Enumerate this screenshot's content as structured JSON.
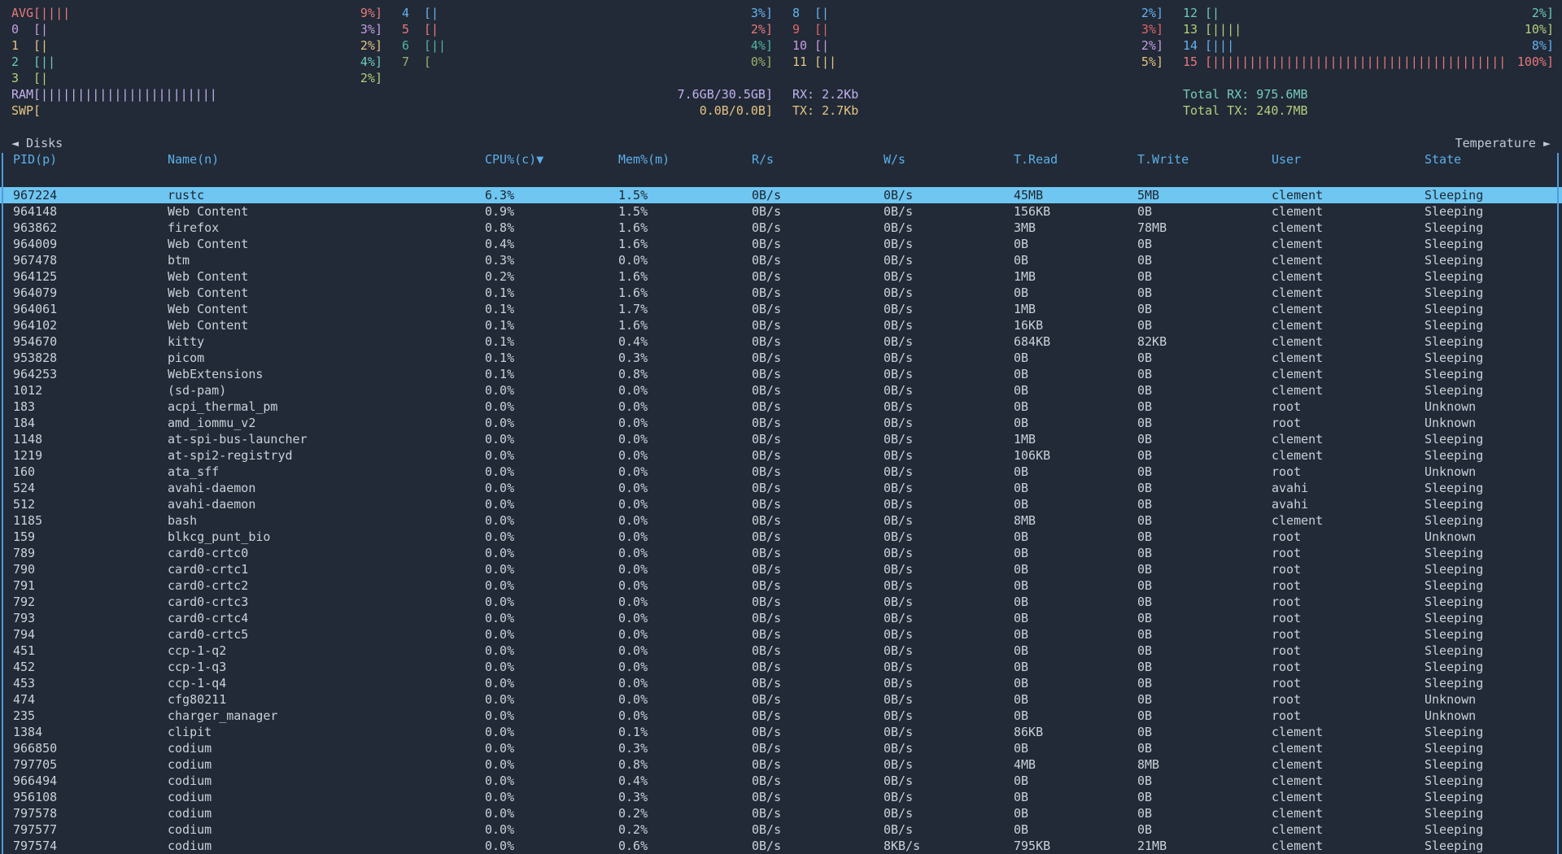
{
  "colors": {
    "background": "#212a36",
    "text": "#cbd1da",
    "header_blue": "#5eaee8",
    "border_blue": "#4c9be0",
    "selected_bg": "#6ec6f1",
    "selected_text": "#1d2531",
    "palette": {
      "lightred": "#e8797d",
      "red": "#e06568",
      "lightmagenta": "#c99ce4",
      "lightyellow": "#e5c384",
      "lightcyan": "#6ec9bd",
      "lightgreen": "#b4ce7e",
      "lightblue": "#67b1f0",
      "cyan": "#52b3a4",
      "green": "#9cb167",
      "purple": "#c3b1ee",
      "teal_total": "#76cabb"
    }
  },
  "cpu": {
    "columns": [
      [
        {
          "label": "AVG",
          "pipes": 4,
          "value": "9%",
          "color": "lightred"
        },
        {
          "label": "0",
          "pipes": 1,
          "value": "3%",
          "color": "lightmagenta"
        },
        {
          "label": "1",
          "pipes": 1,
          "value": "2%",
          "color": "lightyellow"
        },
        {
          "label": "2",
          "pipes": 2,
          "value": "4%",
          "color": "lightcyan"
        },
        {
          "label": "3",
          "pipes": 1,
          "value": "2%",
          "color": "lightgreen"
        }
      ],
      [
        {
          "label": "4",
          "pipes": 1,
          "value": "3%",
          "color": "lightblue"
        },
        {
          "label": "5",
          "pipes": 1,
          "value": "2%",
          "color": "lightred"
        },
        {
          "label": "6",
          "pipes": 2,
          "value": "4%",
          "color": "cyan"
        },
        {
          "label": "7",
          "pipes": 0,
          "value": "0%",
          "color": "green"
        }
      ],
      [
        {
          "label": "8",
          "pipes": 1,
          "value": "2%",
          "color": "lightblue"
        },
        {
          "label": "9",
          "pipes": 1,
          "value": "3%",
          "color": "red"
        },
        {
          "label": "10",
          "pipes": 1,
          "value": "2%",
          "color": "lightmagenta"
        },
        {
          "label": "11",
          "pipes": 2,
          "value": "5%",
          "color": "lightyellow"
        }
      ],
      [
        {
          "label": "12",
          "pipes": 1,
          "value": "2%",
          "color": "lightcyan"
        },
        {
          "label": "13",
          "pipes": 4,
          "value": "10%",
          "color": "lightgreen"
        },
        {
          "label": "14",
          "pipes": 3,
          "value": "8%",
          "color": "lightblue"
        },
        {
          "label": "15",
          "pipes": 40,
          "value": "100%",
          "color": "lightred"
        }
      ]
    ]
  },
  "memory": {
    "ram": {
      "label": "RAM",
      "pipes": 24,
      "value": "7.6GB/30.5GB",
      "color": "purple"
    },
    "swp": {
      "label": "SWP",
      "pipes": 0,
      "value": "0.0B/0.0B",
      "color": "lightyellow"
    }
  },
  "network": {
    "rx": "RX: 2.2Kb",
    "tx": "TX: 2.7Kb",
    "total_rx": "Total RX: 975.6MB",
    "total_tx": "Total TX: 240.7MB",
    "rx_color": "purple",
    "tx_color": "lightyellow",
    "total_rx_color": "teal_total",
    "total_tx_color": "lightgreen"
  },
  "nav": {
    "left_label": "◄ Disks",
    "right_label": "Temperature ►"
  },
  "process_table": {
    "headers": [
      "PID(p)",
      "Name(n)",
      "CPU%(c)▼",
      "Mem%(m)",
      "R/s",
      "W/s",
      "T.Read",
      "T.Write",
      "User",
      "State"
    ],
    "sort_column": "CPU%(c)",
    "sort_indicator": "▼",
    "selected_index": 0,
    "rows": [
      [
        "967224",
        "rustc",
        "6.3%",
        "1.5%",
        "0B/s",
        "0B/s",
        "45MB",
        "5MB",
        "clement",
        "Sleeping"
      ],
      [
        "964148",
        "Web Content",
        "0.9%",
        "1.5%",
        "0B/s",
        "0B/s",
        "156KB",
        "0B",
        "clement",
        "Sleeping"
      ],
      [
        "963862",
        "firefox",
        "0.8%",
        "1.6%",
        "0B/s",
        "0B/s",
        "3MB",
        "78MB",
        "clement",
        "Sleeping"
      ],
      [
        "964009",
        "Web Content",
        "0.4%",
        "1.6%",
        "0B/s",
        "0B/s",
        "0B",
        "0B",
        "clement",
        "Sleeping"
      ],
      [
        "967478",
        "btm",
        "0.3%",
        "0.0%",
        "0B/s",
        "0B/s",
        "0B",
        "0B",
        "clement",
        "Sleeping"
      ],
      [
        "964125",
        "Web Content",
        "0.2%",
        "1.6%",
        "0B/s",
        "0B/s",
        "1MB",
        "0B",
        "clement",
        "Sleeping"
      ],
      [
        "964079",
        "Web Content",
        "0.1%",
        "1.6%",
        "0B/s",
        "0B/s",
        "0B",
        "0B",
        "clement",
        "Sleeping"
      ],
      [
        "964061",
        "Web Content",
        "0.1%",
        "1.7%",
        "0B/s",
        "0B/s",
        "1MB",
        "0B",
        "clement",
        "Sleeping"
      ],
      [
        "964102",
        "Web Content",
        "0.1%",
        "1.6%",
        "0B/s",
        "0B/s",
        "16KB",
        "0B",
        "clement",
        "Sleeping"
      ],
      [
        "954670",
        "kitty",
        "0.1%",
        "0.4%",
        "0B/s",
        "0B/s",
        "684KB",
        "82KB",
        "clement",
        "Sleeping"
      ],
      [
        "953828",
        "picom",
        "0.1%",
        "0.3%",
        "0B/s",
        "0B/s",
        "0B",
        "0B",
        "clement",
        "Sleeping"
      ],
      [
        "964253",
        "WebExtensions",
        "0.1%",
        "0.8%",
        "0B/s",
        "0B/s",
        "0B",
        "0B",
        "clement",
        "Sleeping"
      ],
      [
        "1012",
        "(sd-pam)",
        "0.0%",
        "0.0%",
        "0B/s",
        "0B/s",
        "0B",
        "0B",
        "clement",
        "Sleeping"
      ],
      [
        "183",
        "acpi_thermal_pm",
        "0.0%",
        "0.0%",
        "0B/s",
        "0B/s",
        "0B",
        "0B",
        "root",
        "Unknown"
      ],
      [
        "184",
        "amd_iommu_v2",
        "0.0%",
        "0.0%",
        "0B/s",
        "0B/s",
        "0B",
        "0B",
        "root",
        "Unknown"
      ],
      [
        "1148",
        "at-spi-bus-launcher",
        "0.0%",
        "0.0%",
        "0B/s",
        "0B/s",
        "1MB",
        "0B",
        "clement",
        "Sleeping"
      ],
      [
        "1219",
        "at-spi2-registryd",
        "0.0%",
        "0.0%",
        "0B/s",
        "0B/s",
        "106KB",
        "0B",
        "clement",
        "Sleeping"
      ],
      [
        "160",
        "ata_sff",
        "0.0%",
        "0.0%",
        "0B/s",
        "0B/s",
        "0B",
        "0B",
        "root",
        "Unknown"
      ],
      [
        "524",
        "avahi-daemon",
        "0.0%",
        "0.0%",
        "0B/s",
        "0B/s",
        "0B",
        "0B",
        "avahi",
        "Sleeping"
      ],
      [
        "512",
        "avahi-daemon",
        "0.0%",
        "0.0%",
        "0B/s",
        "0B/s",
        "0B",
        "0B",
        "avahi",
        "Sleeping"
      ],
      [
        "1185",
        "bash",
        "0.0%",
        "0.0%",
        "0B/s",
        "0B/s",
        "8MB",
        "0B",
        "clement",
        "Sleeping"
      ],
      [
        "159",
        "blkcg_punt_bio",
        "0.0%",
        "0.0%",
        "0B/s",
        "0B/s",
        "0B",
        "0B",
        "root",
        "Unknown"
      ],
      [
        "789",
        "card0-crtc0",
        "0.0%",
        "0.0%",
        "0B/s",
        "0B/s",
        "0B",
        "0B",
        "root",
        "Sleeping"
      ],
      [
        "790",
        "card0-crtc1",
        "0.0%",
        "0.0%",
        "0B/s",
        "0B/s",
        "0B",
        "0B",
        "root",
        "Sleeping"
      ],
      [
        "791",
        "card0-crtc2",
        "0.0%",
        "0.0%",
        "0B/s",
        "0B/s",
        "0B",
        "0B",
        "root",
        "Sleeping"
      ],
      [
        "792",
        "card0-crtc3",
        "0.0%",
        "0.0%",
        "0B/s",
        "0B/s",
        "0B",
        "0B",
        "root",
        "Sleeping"
      ],
      [
        "793",
        "card0-crtc4",
        "0.0%",
        "0.0%",
        "0B/s",
        "0B/s",
        "0B",
        "0B",
        "root",
        "Sleeping"
      ],
      [
        "794",
        "card0-crtc5",
        "0.0%",
        "0.0%",
        "0B/s",
        "0B/s",
        "0B",
        "0B",
        "root",
        "Sleeping"
      ],
      [
        "451",
        "ccp-1-q2",
        "0.0%",
        "0.0%",
        "0B/s",
        "0B/s",
        "0B",
        "0B",
        "root",
        "Sleeping"
      ],
      [
        "452",
        "ccp-1-q3",
        "0.0%",
        "0.0%",
        "0B/s",
        "0B/s",
        "0B",
        "0B",
        "root",
        "Sleeping"
      ],
      [
        "453",
        "ccp-1-q4",
        "0.0%",
        "0.0%",
        "0B/s",
        "0B/s",
        "0B",
        "0B",
        "root",
        "Sleeping"
      ],
      [
        "474",
        "cfg80211",
        "0.0%",
        "0.0%",
        "0B/s",
        "0B/s",
        "0B",
        "0B",
        "root",
        "Unknown"
      ],
      [
        "235",
        "charger_manager",
        "0.0%",
        "0.0%",
        "0B/s",
        "0B/s",
        "0B",
        "0B",
        "root",
        "Unknown"
      ],
      [
        "1384",
        "clipit",
        "0.0%",
        "0.1%",
        "0B/s",
        "0B/s",
        "86KB",
        "0B",
        "clement",
        "Sleeping"
      ],
      [
        "966850",
        "codium",
        "0.0%",
        "0.3%",
        "0B/s",
        "0B/s",
        "0B",
        "0B",
        "clement",
        "Sleeping"
      ],
      [
        "797705",
        "codium",
        "0.0%",
        "0.8%",
        "0B/s",
        "0B/s",
        "4MB",
        "8MB",
        "clement",
        "Sleeping"
      ],
      [
        "966494",
        "codium",
        "0.0%",
        "0.4%",
        "0B/s",
        "0B/s",
        "0B",
        "0B",
        "clement",
        "Sleeping"
      ],
      [
        "956108",
        "codium",
        "0.0%",
        "0.3%",
        "0B/s",
        "0B/s",
        "0B",
        "0B",
        "clement",
        "Sleeping"
      ],
      [
        "797578",
        "codium",
        "0.0%",
        "0.2%",
        "0B/s",
        "0B/s",
        "0B",
        "0B",
        "clement",
        "Sleeping"
      ],
      [
        "797577",
        "codium",
        "0.0%",
        "0.2%",
        "0B/s",
        "0B/s",
        "0B",
        "0B",
        "clement",
        "Sleeping"
      ],
      [
        "797574",
        "codium",
        "0.0%",
        "0.6%",
        "0B/s",
        "8KB/s",
        "795KB",
        "21MB",
        "clement",
        "Sleeping"
      ]
    ]
  }
}
